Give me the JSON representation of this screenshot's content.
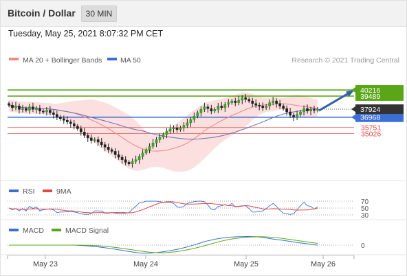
{
  "header": {
    "title": "Bitcoin / Dollar",
    "interval": "30 MIN"
  },
  "timestamp": "Tuesday, May 25, 2021 8:07:32 PM CET",
  "legend": {
    "ma20": "MA 20 + Bollinger Bands",
    "ma50": "MA 50",
    "credit": "Research © 2021 Trading Central"
  },
  "rsi_legend": {
    "rsi": "RSI",
    "ma": "9MA"
  },
  "macd_legend": {
    "macd": "MACD",
    "signal": "MACD Signal"
  },
  "colors": {
    "green": "#5aa617",
    "blue": "#3b6fd4",
    "red": "#e04848",
    "dark": "#333333",
    "band": "#fbd4d4",
    "ma20": "#ef8a8a",
    "ma50": "#6b78b8",
    "arrow": "#2f5fa8"
  },
  "chart_data": {
    "type": "candlestick",
    "x_ticks": [
      "May 23",
      "May 24",
      "May 25",
      "May 26"
    ],
    "y_range": [
      29500,
      43000
    ],
    "current_price": {
      "value": 37924,
      "label": "37924"
    },
    "levels": [
      {
        "value": 40216,
        "label": "40216",
        "kind": "resistance"
      },
      {
        "value": 39489,
        "label": "39489",
        "kind": "resistance"
      },
      {
        "value": 36968,
        "label": "36968",
        "kind": "pivot"
      },
      {
        "value": 35751,
        "label": "35751",
        "kind": "support"
      },
      {
        "value": 35026,
        "label": "35026",
        "kind": "support"
      }
    ],
    "candles_close": [
      38400,
      38100,
      38300,
      37900,
      38000,
      37800,
      38200,
      37900,
      38000,
      37700,
      37600,
      37800,
      37500,
      37300,
      37000,
      36800,
      36600,
      36400,
      36200,
      35900,
      35600,
      35200,
      34800,
      34500,
      34200,
      34300,
      34000,
      33700,
      33400,
      33100,
      32900,
      32500,
      32200,
      31900,
      31600,
      31400,
      31700,
      31900,
      32300,
      32700,
      33100,
      33500,
      33900,
      34300,
      34600,
      34900,
      35300,
      35600,
      35700,
      35500,
      35700,
      36000,
      36300,
      36700,
      37100,
      37500,
      37900,
      38200,
      38000,
      37700,
      37900,
      38300,
      38100,
      38500,
      38700,
      38900,
      38700,
      39000,
      39300,
      39100,
      38900,
      38600,
      38400,
      38300,
      38100,
      38300,
      38700,
      38900,
      38600,
      38300,
      38000,
      37600,
      37200,
      37000,
      37300,
      37600,
      38000,
      37700,
      37900,
      37800,
      37924
    ],
    "rsi": {
      "levels": [
        70,
        50,
        30
      ]
    },
    "macd": {
      "levels": [
        0
      ]
    }
  }
}
